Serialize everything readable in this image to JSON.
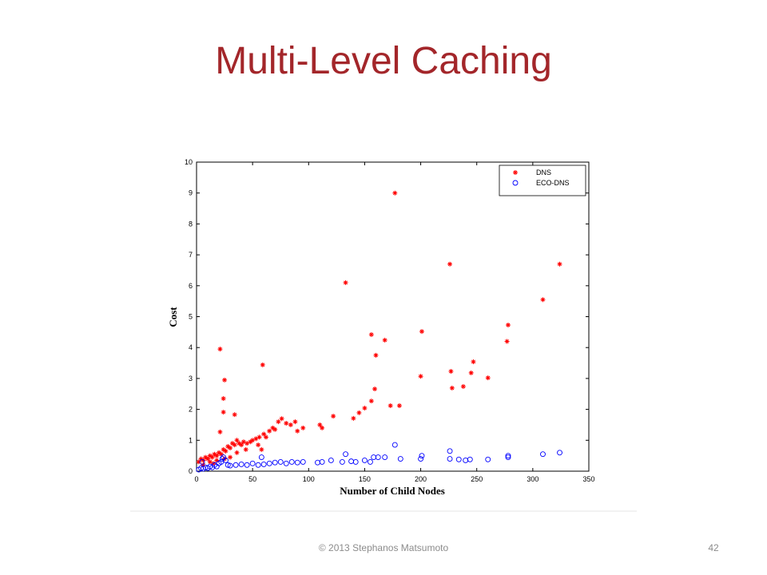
{
  "slide": {
    "title": "Multi-Level Caching",
    "footer": "© 2013 Stephanos Matsumoto",
    "page_number": "42"
  },
  "chart_data": {
    "type": "scatter",
    "xlabel": "Number of Child Nodes",
    "ylabel": "Cost",
    "xlim": [
      0,
      350
    ],
    "ylim": [
      0,
      10
    ],
    "xticks": [
      0,
      50,
      100,
      150,
      200,
      250,
      300,
      350
    ],
    "yticks": [
      0,
      1,
      2,
      3,
      4,
      5,
      6,
      7,
      8,
      9,
      10
    ],
    "legend": "upper right",
    "series": [
      {
        "name": "DNS",
        "color": "#ff0000",
        "marker": "asterisk",
        "x": [
          177,
          226,
          324,
          133,
          309,
          278,
          277,
          201,
          156,
          168,
          160,
          21,
          59,
          247,
          227,
          245,
          200,
          260,
          25,
          228,
          238,
          159,
          156,
          24,
          24,
          34,
          173,
          181,
          150,
          145,
          122,
          140,
          21,
          2,
          4,
          6,
          8,
          10,
          12,
          14,
          16,
          18,
          20,
          22,
          24,
          26,
          28,
          30,
          32,
          34,
          36,
          38,
          40,
          42,
          45,
          48,
          50,
          53,
          56,
          60,
          62,
          65,
          68,
          70,
          73,
          76,
          80,
          84,
          88,
          90,
          95,
          110,
          112,
          12,
          18,
          30,
          36,
          6,
          15,
          25,
          44,
          55,
          58
        ],
        "values": [
          9.0,
          6.7,
          6.7,
          6.1,
          5.55,
          4.73,
          4.2,
          4.52,
          4.42,
          4.24,
          3.75,
          3.95,
          3.44,
          3.54,
          3.23,
          3.18,
          3.07,
          3.02,
          2.95,
          2.69,
          2.74,
          2.66,
          2.27,
          2.35,
          1.91,
          1.83,
          2.12,
          2.12,
          2.04,
          1.89,
          1.78,
          1.71,
          1.27,
          0.3,
          0.4,
          0.35,
          0.45,
          0.4,
          0.5,
          0.45,
          0.55,
          0.5,
          0.6,
          0.55,
          0.7,
          0.65,
          0.8,
          0.75,
          0.9,
          0.85,
          1.0,
          0.9,
          0.85,
          0.95,
          0.9,
          0.95,
          1.0,
          1.05,
          1.1,
          1.2,
          1.1,
          1.3,
          1.4,
          1.35,
          1.6,
          1.7,
          1.55,
          1.5,
          1.6,
          1.3,
          1.4,
          1.5,
          1.4,
          0.3,
          0.35,
          0.45,
          0.6,
          0.2,
          0.25,
          0.4,
          0.7,
          0.85,
          0.7
        ]
      },
      {
        "name": "ECO-DNS",
        "color": "#0000ff",
        "marker": "circle",
        "x": [
          177,
          226,
          324,
          309,
          278,
          201,
          133,
          2,
          4,
          6,
          8,
          10,
          12,
          14,
          16,
          18,
          20,
          22,
          24,
          26,
          28,
          30,
          35,
          40,
          45,
          50,
          55,
          58,
          60,
          65,
          70,
          75,
          80,
          85,
          90,
          95,
          108,
          112,
          120,
          130,
          138,
          142,
          150,
          155,
          158,
          162,
          168,
          182,
          200,
          226,
          234,
          240,
          244,
          260,
          278,
          23,
          5
        ],
        "values": [
          0.85,
          0.65,
          0.6,
          0.55,
          0.5,
          0.5,
          0.55,
          0.05,
          0.1,
          0.08,
          0.12,
          0.1,
          0.15,
          0.12,
          0.2,
          0.15,
          0.25,
          0.3,
          0.45,
          0.35,
          0.2,
          0.18,
          0.2,
          0.22,
          0.2,
          0.25,
          0.2,
          0.45,
          0.22,
          0.25,
          0.28,
          0.3,
          0.25,
          0.3,
          0.28,
          0.3,
          0.28,
          0.3,
          0.35,
          0.3,
          0.32,
          0.3,
          0.35,
          0.3,
          0.45,
          0.45,
          0.45,
          0.4,
          0.4,
          0.4,
          0.38,
          0.35,
          0.38,
          0.38,
          0.45,
          0.4,
          0.3
        ]
      }
    ]
  }
}
